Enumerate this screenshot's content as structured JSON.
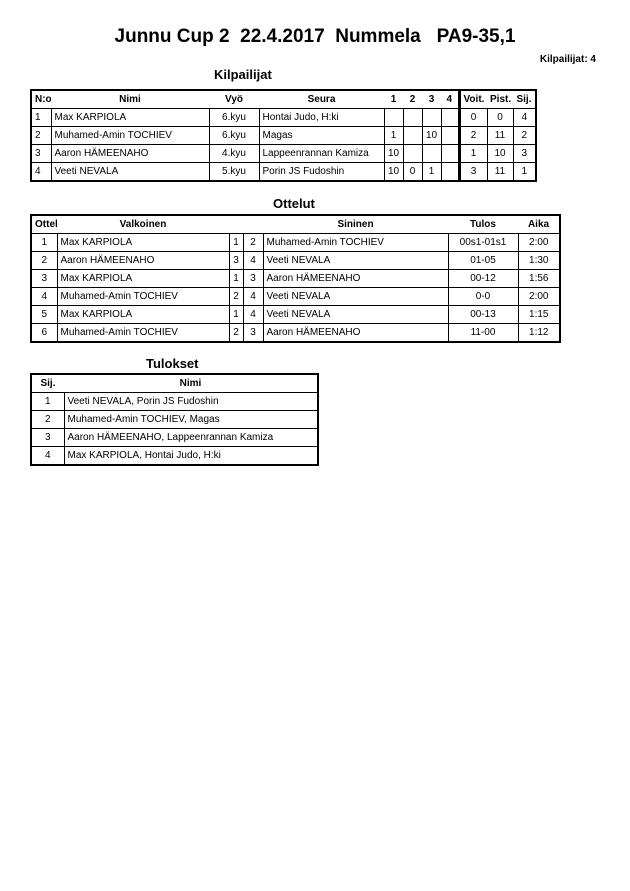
{
  "title": "Junnu Cup 2  22.4.2017  Nummela   PA9-35,1",
  "competitor_count": "Kilpailijat: 4",
  "competitors": {
    "heading": "Kilpailijat",
    "columns": [
      "N:o",
      "Nimi",
      "Vyö",
      "Seura",
      "1",
      "2",
      "3",
      "4",
      "Voit.",
      "Pist.",
      "Sij."
    ],
    "rows": [
      [
        "1",
        "Max KARPIOLA",
        "6.kyu",
        "Hontai Judo, H:ki",
        "",
        "",
        "",
        "",
        "0",
        "0",
        "4"
      ],
      [
        "2",
        "Muhamed-Amin TOCHIEV",
        "6.kyu",
        "Magas",
        "1",
        "",
        "10",
        "",
        "2",
        "11",
        "2"
      ],
      [
        "3",
        "Aaron HÄMEENAHO",
        "4.kyu",
        "Lappeenrannan Kamiza",
        "10",
        "",
        "",
        "",
        "1",
        "10",
        "3"
      ],
      [
        "4",
        "Veeti NEVALA",
        "5.kyu",
        "Porin JS Fudoshin",
        "10",
        "0",
        "1",
        "",
        "3",
        "11",
        "1"
      ]
    ]
  },
  "matches": {
    "heading": "Ottelut",
    "columns": [
      "Ottelu",
      "Valkoinen",
      "",
      "",
      "Sininen",
      "Tulos",
      "Aika"
    ],
    "rows": [
      [
        "1",
        "Max KARPIOLA",
        "1",
        "2",
        "Muhamed-Amin TOCHIEV",
        "00s1-01s1",
        "2:00"
      ],
      [
        "2",
        "Aaron HÄMEENAHO",
        "3",
        "4",
        "Veeti NEVALA",
        "01-05",
        "1:30"
      ],
      [
        "3",
        "Max KARPIOLA",
        "1",
        "3",
        "Aaron HÄMEENAHO",
        "00-12",
        "1:56"
      ],
      [
        "4",
        "Muhamed-Amin TOCHIEV",
        "2",
        "4",
        "Veeti NEVALA",
        "0-0",
        "2:00"
      ],
      [
        "5",
        "Max KARPIOLA",
        "1",
        "4",
        "Veeti NEVALA",
        "00-13",
        "1:15"
      ],
      [
        "6",
        "Muhamed-Amin TOCHIEV",
        "2",
        "3",
        "Aaron HÄMEENAHO",
        "11-00",
        "1:12"
      ]
    ]
  },
  "results": {
    "heading": "Tulokset",
    "columns": [
      "Sij.",
      "Nimi"
    ],
    "rows": [
      [
        "1",
        "Veeti NEVALA, Porin JS Fudoshin"
      ],
      [
        "2",
        "Muhamed-Amin TOCHIEV, Magas"
      ],
      [
        "3",
        "Aaron HÄMEENAHO, Lappeenrannan Kamiza"
      ],
      [
        "4",
        "Max KARPIOLA, Hontai Judo, H:ki"
      ]
    ]
  }
}
